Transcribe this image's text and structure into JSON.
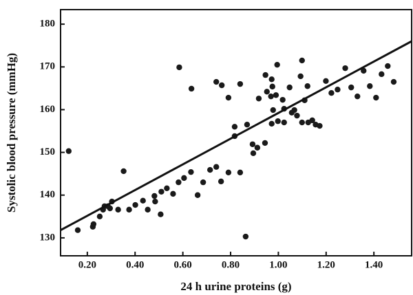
{
  "chart_data": {
    "type": "scatter",
    "x_label": "24 h urine proteins (g)",
    "y_label": "Systolic blood pressure (mmHg)",
    "xlim": [
      0.088,
      1.558
    ],
    "ylim": [
      125.8,
      183.4
    ],
    "xticks": [
      {
        "value": 0.2,
        "label": "0.20"
      },
      {
        "value": 0.4,
        "label": "0.40"
      },
      {
        "value": 0.6,
        "label": "0.60"
      },
      {
        "value": 0.8,
        "label": "0.80"
      },
      {
        "value": 1.0,
        "label": "1.00"
      },
      {
        "value": 1.2,
        "label": "1.20"
      },
      {
        "value": 1.4,
        "label": "1.40"
      }
    ],
    "yticks": [
      130,
      140,
      150,
      160,
      170,
      180
    ],
    "color": "#1a1a1a",
    "fit_line": {
      "x": [
        0.088,
        1.558
      ],
      "y": [
        131.8,
        176.0
      ]
    },
    "x": [
      0.122,
      0.16,
      0.223,
      0.226,
      0.252,
      0.266,
      0.272,
      0.286,
      0.295,
      0.303,
      0.329,
      0.352,
      0.375,
      0.401,
      0.433,
      0.453,
      0.481,
      0.484,
      0.507,
      0.51,
      0.533,
      0.559,
      0.582,
      0.585,
      0.605,
      0.634,
      0.636,
      0.662,
      0.685,
      0.714,
      0.74,
      0.74,
      0.76,
      0.763,
      0.791,
      0.791,
      0.817,
      0.817,
      0.84,
      0.84,
      0.863,
      0.869,
      0.892,
      0.895,
      0.912,
      0.918,
      0.944,
      0.946,
      0.952,
      0.969,
      0.975,
      0.972,
      0.972,
      0.978,
      0.99,
      0.995,
      0.998,
      1.018,
      1.024,
      1.024,
      1.047,
      1.056,
      1.067,
      1.078,
      1.093,
      1.099,
      1.099,
      1.11,
      1.122,
      1.125,
      1.142,
      1.156,
      1.173,
      1.199,
      1.222,
      1.248,
      1.28,
      1.305,
      1.331,
      1.357,
      1.383,
      1.409,
      1.432,
      1.458,
      1.483
    ],
    "values": [
      150.3,
      131.8,
      132.6,
      133.2,
      135.0,
      136.6,
      137.4,
      137.4,
      136.9,
      138.5,
      136.6,
      145.6,
      136.6,
      137.7,
      138.7,
      136.6,
      139.8,
      138.5,
      135.5,
      140.8,
      141.6,
      140.3,
      143.0,
      169.9,
      144.0,
      145.4,
      164.9,
      140.0,
      143.0,
      145.9,
      146.6,
      166.5,
      143.2,
      165.7,
      145.3,
      162.8,
      156.0,
      153.8,
      166.0,
      145.3,
      130.3,
      156.5,
      151.9,
      149.8,
      151.1,
      162.6,
      152.2,
      168.1,
      164.2,
      163.1,
      165.4,
      167.1,
      156.7,
      159.9,
      163.4,
      170.5,
      157.3,
      162.3,
      157.0,
      160.2,
      165.2,
      159.3,
      159.9,
      158.6,
      167.8,
      171.5,
      157.0,
      162.2,
      165.5,
      157.0,
      157.5,
      156.5,
      156.2,
      166.7,
      163.9,
      164.7,
      169.7,
      165.2,
      163.1,
      169.1,
      165.5,
      162.8,
      168.3,
      170.2,
      166.5
    ]
  }
}
